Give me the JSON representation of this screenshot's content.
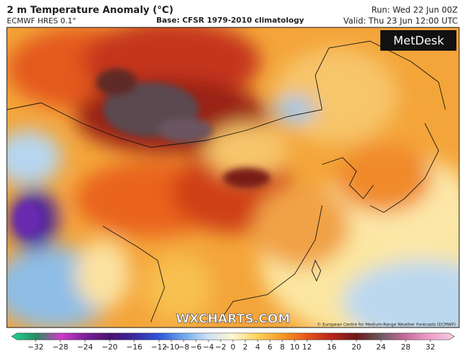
{
  "header": {
    "title": "2 m Temperature Anomaly (°C)",
    "model": "ECMWF HRES 0.1°",
    "base": "Base: CFSR 1979-2010 climatology",
    "run": "Run: Wed 22 Jun 00Z",
    "valid": "Valid: Thu 23 Jun 12:00 UTC"
  },
  "map": {
    "logo": "MetDesk",
    "watermark": "WXCHARTS.COM",
    "credit": "© European Centre for Medium-Range Weather Forecasts (ECMWF)"
  },
  "colorbar": {
    "lim": [
      -35,
      35
    ],
    "ticks": [
      {
        "value": -32,
        "label": "−32"
      },
      {
        "value": -28,
        "label": "−28"
      },
      {
        "value": -24,
        "label": "−24"
      },
      {
        "value": -20,
        "label": "−20"
      },
      {
        "value": -16,
        "label": "−16"
      },
      {
        "value": -12,
        "label": "−12"
      },
      {
        "value": -10,
        "label": "−10"
      },
      {
        "value": -8,
        "label": "−8"
      },
      {
        "value": -6,
        "label": "−6"
      },
      {
        "value": -4,
        "label": "−4"
      },
      {
        "value": -2,
        "label": "−2"
      },
      0,
      2,
      4,
      6,
      8,
      10,
      12,
      16,
      20,
      24,
      28,
      32
    ],
    "colors": [
      "#1fd39a",
      "#2a8a5e",
      "#d03cc8",
      "#7a1f9a",
      "#4a1470",
      "#3a2aa0",
      "#2f56d8",
      "#6fa8ec",
      "#cfe3f4",
      "#fff7d0",
      "#fbd25a",
      "#f59a23",
      "#e8551a",
      "#b8241a",
      "#6e1a1a",
      "#6a5a60",
      "#c76a9a",
      "#eaa0c8",
      "#f6cce4"
    ]
  }
}
